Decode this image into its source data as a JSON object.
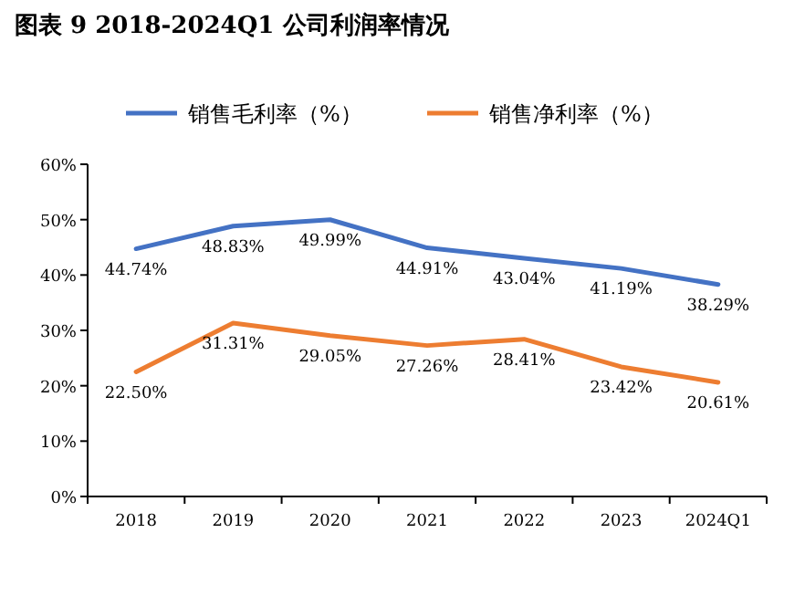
{
  "chart_data": {
    "type": "line",
    "title": "图表 9 2018-2024Q1 公司利润率情况",
    "categories": [
      "2018",
      "2019",
      "2020",
      "2021",
      "2022",
      "2023",
      "2024Q1"
    ],
    "series": [
      {
        "name": "销售毛利率（%）",
        "color": "#4472c4",
        "values": [
          44.74,
          48.83,
          49.99,
          44.91,
          43.04,
          41.19,
          38.29
        ],
        "value_labels": [
          "44.74%",
          "48.83%",
          "49.99%",
          "44.91%",
          "43.04%",
          "41.19%",
          "38.29%"
        ]
      },
      {
        "name": "销售净利率（%）",
        "color": "#ed7d31",
        "values": [
          22.5,
          31.31,
          29.05,
          27.26,
          28.41,
          23.42,
          20.61
        ],
        "value_labels": [
          "22.50%",
          "31.31%",
          "29.05%",
          "27.26%",
          "28.41%",
          "23.42%",
          "20.61%"
        ]
      }
    ],
    "ylim": [
      0,
      60
    ],
    "yticks": [
      {
        "value": 0,
        "label": "0%"
      },
      {
        "value": 10,
        "label": "10%"
      },
      {
        "value": 20,
        "label": "20%"
      },
      {
        "value": 30,
        "label": "30%"
      },
      {
        "value": 40,
        "label": "40%"
      },
      {
        "value": 50,
        "label": "50%"
      },
      {
        "value": 60,
        "label": "60%"
      }
    ],
    "legend": "top",
    "grid": false,
    "marker": "none",
    "line_style": "solid"
  }
}
